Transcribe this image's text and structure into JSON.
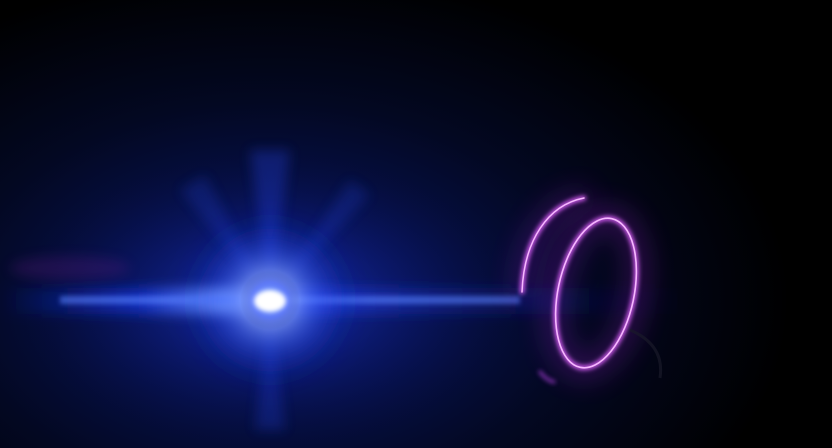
{
  "scene": {
    "subject": "blue-light-source-and-neon-ring",
    "colors": {
      "background": "#000000",
      "ambient_glow": "#0a1a6e",
      "light_core": "#ffffff",
      "light_inner": "#7fb0ff",
      "light_outer": "#1f3fff",
      "ring_neon": "#e060ff",
      "ring_glow": "#a020d0"
    }
  }
}
